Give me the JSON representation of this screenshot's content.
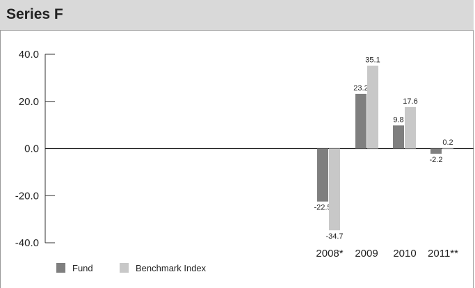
{
  "header": {
    "title": "Series F"
  },
  "chart_data": {
    "type": "bar",
    "categories": [
      "2008*",
      "2009",
      "2010",
      "2011**"
    ],
    "series": [
      {
        "name": "Fund",
        "values": [
          -22.5,
          23.2,
          9.8,
          -2.2
        ],
        "color": "#7f7f7f"
      },
      {
        "name": "Benchmark Index",
        "values": [
          -34.7,
          35.1,
          17.6,
          0.2
        ],
        "color": "#c8c8c8"
      }
    ],
    "y_ticks": [
      "40.0",
      "20.0",
      "0.0",
      "-20.0",
      "-40.0"
    ],
    "ylim": [
      -40,
      40
    ],
    "grid": false,
    "legend_position": "bottom-left"
  }
}
